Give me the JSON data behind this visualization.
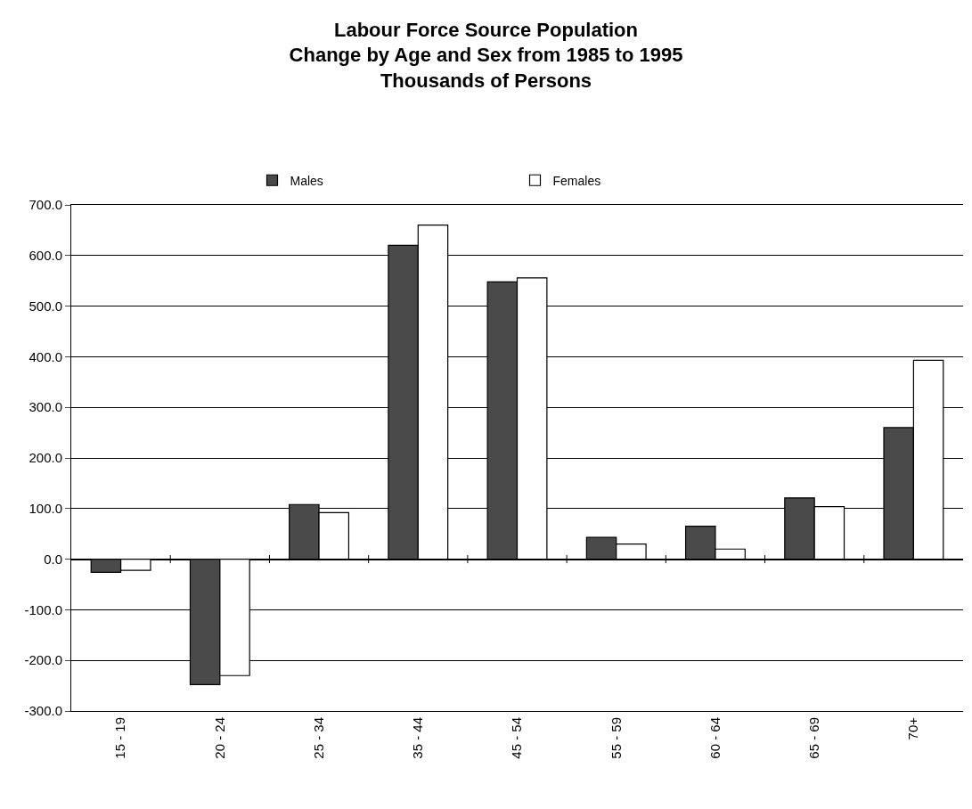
{
  "chart_data": {
    "type": "bar",
    "title": "Labour Force Source Population\nChange by Age and Sex from 1985 to 1995\nThousands of Persons",
    "categories": [
      "15 - 19",
      "20 - 24",
      "25 - 34",
      "35 - 44",
      "45 - 54",
      "55 - 59",
      "60 - 64",
      "65 - 69",
      "70+"
    ],
    "series": [
      {
        "name": "Males",
        "color": "#4a4a4a",
        "values": [
          -26,
          -248,
          108,
          620,
          548,
          43,
          65,
          121,
          260
        ]
      },
      {
        "name": "Females",
        "color": "#ffffff",
        "values": [
          -22,
          -230,
          92,
          660,
          556,
          30,
          20,
          104,
          393
        ]
      }
    ],
    "ylim": [
      -300,
      700
    ],
    "yticks": [
      {
        "value": -300,
        "label": "-300.0"
      },
      {
        "value": -200,
        "label": "-200.0"
      },
      {
        "value": -100,
        "label": "-100.0"
      },
      {
        "value": 0,
        "label": "0.0"
      },
      {
        "value": 100,
        "label": "100.0"
      },
      {
        "value": 200,
        "label": "200.0"
      },
      {
        "value": 300,
        "label": "300.0"
      },
      {
        "value": 400,
        "label": "400.0"
      },
      {
        "value": 500,
        "label": "500.0"
      },
      {
        "value": 600,
        "label": "600.0"
      },
      {
        "value": 700,
        "label": "700.0"
      }
    ],
    "grid": "y",
    "legend": "top"
  }
}
